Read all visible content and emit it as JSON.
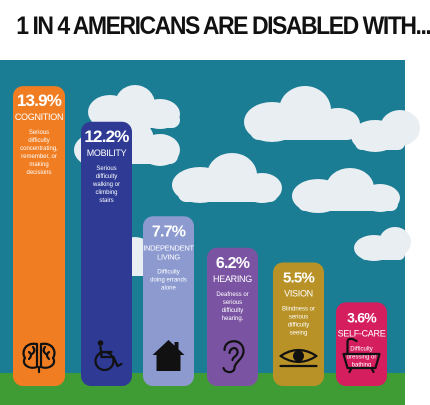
{
  "title": "1 IN 4 AMERICANS ARE DISABLED WITH...",
  "colors": {
    "sky": "#1b7d93",
    "ground": "#3f9b34",
    "cloud": "#e9eef2",
    "text": "#ffffff"
  },
  "chart_data": {
    "type": "bar",
    "title": "1 IN 4 AMERICANS ARE DISABLED WITH...",
    "ylim": [
      0,
      14
    ],
    "categories": [
      "COGNITION",
      "MOBILITY",
      "INDEPENDENT LIVING",
      "HEARING",
      "VISION",
      "SELF-CARE"
    ],
    "values": [
      13.9,
      12.2,
      7.7,
      6.2,
      5.5,
      3.6
    ],
    "value_labels": [
      "13.9%",
      "12.2%",
      "7.7%",
      "6.2%",
      "5.5%",
      "3.6%"
    ],
    "descriptions": [
      "Serious difficulty concentrating, remember, or making decisions",
      "Serious difficulty walking or climbing stairs",
      "Difficulty doing errands alone",
      "Deafness or serious difficulty hearing.",
      "Blindness or serious difficulty seeing",
      "Difficulty dressing or bathing"
    ],
    "icons": [
      "brain-icon",
      "wheelchair-icon",
      "house-icon",
      "ear-icon",
      "eye-icon",
      "bathtub-icon"
    ],
    "colors": [
      "#f07d22",
      "#2e3a94",
      "#8c9ad0",
      "#7a54a2",
      "#b89227",
      "#d41e5e"
    ]
  }
}
